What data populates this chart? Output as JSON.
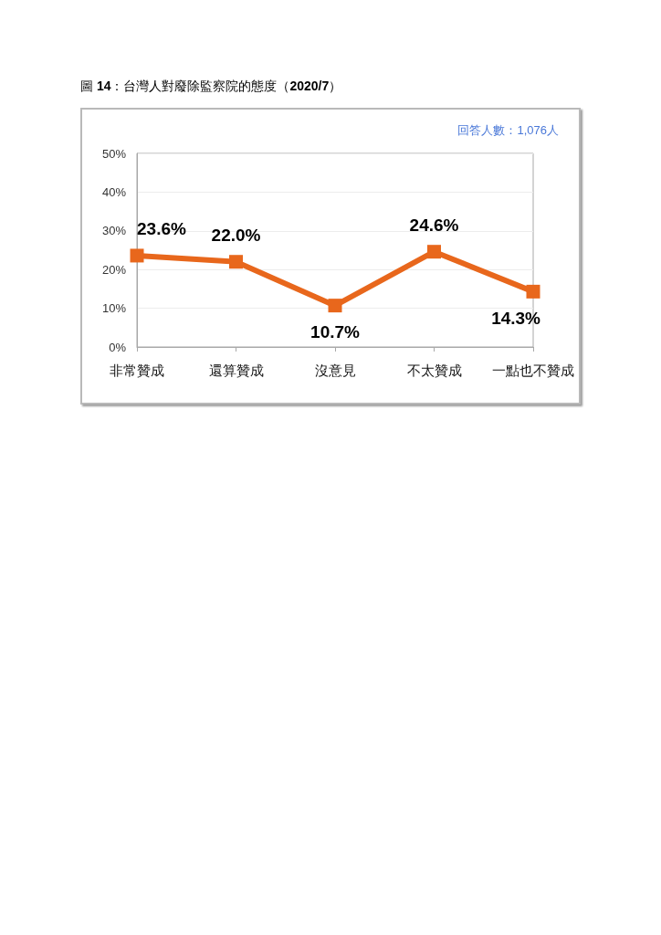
{
  "chart_data": {
    "type": "line",
    "title": "圖 14：台灣人對廢除監察院的態度（2020/7）",
    "annotations": [
      "回答人數：1,076人"
    ],
    "categories": [
      "非常贊成",
      "還算贊成",
      "沒意見",
      "不太贊成",
      "一點也不贊成"
    ],
    "series": [
      {
        "color": "#e8671c",
        "values": [
          23.6,
          22.0,
          10.7,
          24.6,
          14.3
        ],
        "value_labels": [
          "23.6%",
          "22.0%",
          "10.7%",
          "24.6%",
          "14.3%"
        ]
      }
    ],
    "ylim": [
      0,
      50
    ],
    "yticks": [
      {
        "value": 0,
        "label": "0%"
      },
      {
        "value": 10,
        "label": "10%"
      },
      {
        "value": 20,
        "label": "20%"
      },
      {
        "value": 30,
        "label": "30%"
      },
      {
        "value": 40,
        "label": "40%"
      },
      {
        "value": 50,
        "label": "50%"
      }
    ],
    "grid": "y",
    "marker": "square",
    "line_style": "solid"
  }
}
